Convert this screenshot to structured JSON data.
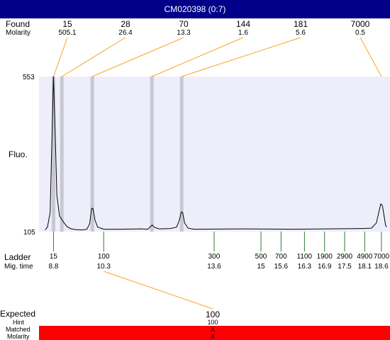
{
  "header": {
    "title": "CM020398 (0:7)"
  },
  "row_labels": {
    "found": "Found",
    "molarity": "Molarity",
    "fluo": "Fluo.",
    "ladder": "Ladder",
    "mig_time": "Mig. time",
    "expected": "Expected",
    "hint": "Hint",
    "matched": "Matched",
    "molarity_bottom": "Molarity"
  },
  "colors": {
    "title_bg": "#020088",
    "plot_bg": "#eeeefa",
    "peak_band": "#c8c8d4",
    "callout_line": "#f5a623",
    "ladder_tick": "#2e7d32",
    "trace": "#000000",
    "match_bar": "#ff0000"
  },
  "chart_data": {
    "type": "line",
    "title": "",
    "xlabel": "",
    "ylabel": "Fluo.",
    "ylim": [
      105,
      553
    ],
    "xlim": [
      8.6,
      18.75
    ],
    "y_tick_labels": [
      "553",
      "105"
    ],
    "trace": [
      {
        "t": 8.55,
        "y": 110
      },
      {
        "t": 8.62,
        "y": 118
      },
      {
        "t": 8.7,
        "y": 160
      },
      {
        "t": 8.76,
        "y": 400
      },
      {
        "t": 8.8,
        "y": 553
      },
      {
        "t": 8.84,
        "y": 430
      },
      {
        "t": 8.9,
        "y": 210
      },
      {
        "t": 8.98,
        "y": 150
      },
      {
        "t": 9.05,
        "y": 140
      },
      {
        "t": 9.12,
        "y": 130
      },
      {
        "t": 9.2,
        "y": 120
      },
      {
        "t": 9.3,
        "y": 114
      },
      {
        "t": 9.45,
        "y": 111
      },
      {
        "t": 9.65,
        "y": 110
      },
      {
        "t": 9.8,
        "y": 112
      },
      {
        "t": 9.88,
        "y": 128
      },
      {
        "t": 9.94,
        "y": 172
      },
      {
        "t": 9.98,
        "y": 172
      },
      {
        "t": 10.04,
        "y": 138
      },
      {
        "t": 10.12,
        "y": 118
      },
      {
        "t": 10.3,
        "y": 112
      },
      {
        "t": 10.8,
        "y": 112
      },
      {
        "t": 11.4,
        "y": 113
      },
      {
        "t": 11.62,
        "y": 112
      },
      {
        "t": 11.7,
        "y": 120
      },
      {
        "t": 11.75,
        "y": 124
      },
      {
        "t": 11.82,
        "y": 117
      },
      {
        "t": 11.95,
        "y": 113
      },
      {
        "t": 12.3,
        "y": 114
      },
      {
        "t": 12.48,
        "y": 118
      },
      {
        "t": 12.56,
        "y": 138
      },
      {
        "t": 12.62,
        "y": 162
      },
      {
        "t": 12.66,
        "y": 160
      },
      {
        "t": 12.72,
        "y": 130
      },
      {
        "t": 12.82,
        "y": 115
      },
      {
        "t": 13.0,
        "y": 112
      },
      {
        "t": 14.5,
        "y": 113
      },
      {
        "t": 16.0,
        "y": 112
      },
      {
        "t": 17.0,
        "y": 113
      },
      {
        "t": 18.0,
        "y": 114
      },
      {
        "t": 18.3,
        "y": 115
      },
      {
        "t": 18.45,
        "y": 130
      },
      {
        "t": 18.52,
        "y": 160
      },
      {
        "t": 18.58,
        "y": 185
      },
      {
        "t": 18.63,
        "y": 180
      },
      {
        "t": 18.68,
        "y": 150
      },
      {
        "t": 18.72,
        "y": 125
      },
      {
        "t": 18.75,
        "y": 118
      }
    ],
    "found_peaks": [
      {
        "size": "15",
        "molarity": "505.1",
        "t": 8.8
      },
      {
        "size": "28",
        "molarity": "26.4",
        "t": 9.05
      },
      {
        "size": "70",
        "molarity": "13.3",
        "t": 9.96
      },
      {
        "size": "144",
        "molarity": "1.6",
        "t": 11.74
      },
      {
        "size": "181",
        "molarity": "5.6",
        "t": 12.63
      }
    ],
    "found_upper": {
      "size": "7000",
      "molarity": "0.5",
      "t": 18.6
    },
    "ladder": [
      {
        "size": "15",
        "mig_time": "8.8",
        "t": 8.8
      },
      {
        "size": "100",
        "mig_time": "10.3",
        "t": 10.3
      },
      {
        "size": "300",
        "mig_time": "13.6",
        "t": 13.6
      },
      {
        "size": "500",
        "mig_time": "15",
        "t": 15.0
      },
      {
        "size": "700",
        "mig_time": "15.6",
        "t": 15.6
      },
      {
        "size": "1100",
        "mig_time": "16.3",
        "t": 16.3
      },
      {
        "size": "1900",
        "mig_time": "16.9",
        "t": 16.9
      },
      {
        "size": "2900",
        "mig_time": "17.5",
        "t": 17.5
      },
      {
        "size": "4900",
        "mig_time": "18.1",
        "t": 18.1
      },
      {
        "size": "7000",
        "mig_time": "18.6",
        "t": 18.6
      }
    ],
    "expected": [
      {
        "size": "100",
        "hint": "100",
        "matched": "X",
        "molarity": "X",
        "ladder_ref": "100"
      }
    ]
  }
}
